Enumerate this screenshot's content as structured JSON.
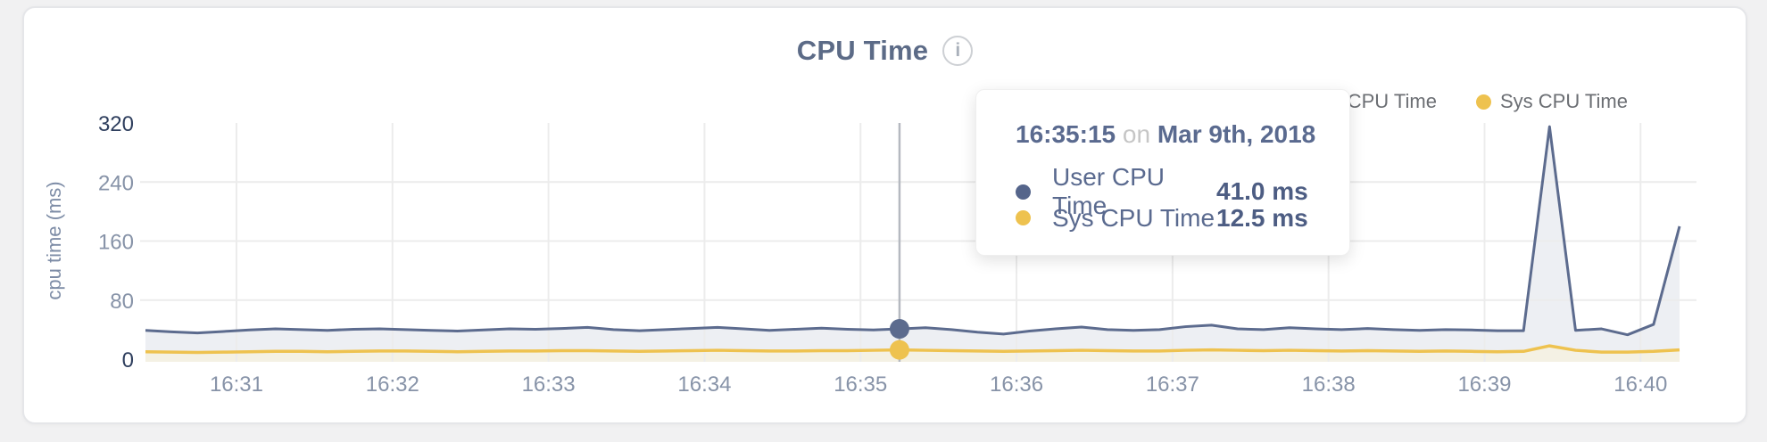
{
  "header": {
    "title": "CPU Time",
    "info_icon_glyph": "i"
  },
  "legend": {
    "items": [
      {
        "label": "User CPU Time",
        "color": "#5c6b8e"
      },
      {
        "label": "Sys CPU Time",
        "color": "#eec24f"
      }
    ]
  },
  "tooltip": {
    "time": "16:35:15",
    "connector": "on",
    "date": "Mar 9th, 2018",
    "rows": [
      {
        "label": "User CPU Time",
        "value": "41.0 ms",
        "color": "#55658b"
      },
      {
        "label": "Sys CPU Time",
        "value": "12.5 ms",
        "color": "#eec24f"
      }
    ]
  },
  "chart_data": {
    "type": "area",
    "title": "CPU Time",
    "xlabel": "",
    "ylabel": "cpu time (ms)",
    "ylim": [
      0,
      320
    ],
    "y_ticks": [
      0,
      80,
      160,
      240,
      320
    ],
    "x_ticks": [
      "16:31",
      "16:32",
      "16:33",
      "16:34",
      "16:35",
      "16:36",
      "16:37",
      "16:38",
      "16:39",
      "16:40"
    ],
    "x_range": [
      "16:30:25",
      "16:40:15"
    ],
    "hover_time": "16:35:15",
    "grid": true,
    "legend_position": "top-right",
    "x": [
      "16:30:25",
      "16:30:35",
      "16:30:45",
      "16:30:55",
      "16:31:05",
      "16:31:15",
      "16:31:25",
      "16:31:35",
      "16:31:45",
      "16:31:55",
      "16:32:05",
      "16:32:15",
      "16:32:25",
      "16:32:35",
      "16:32:45",
      "16:32:55",
      "16:33:05",
      "16:33:15",
      "16:33:25",
      "16:33:35",
      "16:33:45",
      "16:33:55",
      "16:34:05",
      "16:34:15",
      "16:34:25",
      "16:34:35",
      "16:34:45",
      "16:34:55",
      "16:35:05",
      "16:35:15",
      "16:35:25",
      "16:35:35",
      "16:35:45",
      "16:35:55",
      "16:36:05",
      "16:36:15",
      "16:36:25",
      "16:36:35",
      "16:36:45",
      "16:36:55",
      "16:37:05",
      "16:37:15",
      "16:37:25",
      "16:37:35",
      "16:37:45",
      "16:37:55",
      "16:38:05",
      "16:38:15",
      "16:38:25",
      "16:38:35",
      "16:38:45",
      "16:38:55",
      "16:39:05",
      "16:39:15",
      "16:39:25",
      "16:39:35",
      "16:39:45",
      "16:39:55",
      "16:40:05",
      "16:40:15"
    ],
    "series": [
      {
        "name": "User CPU Time",
        "color": "#5c6b8e",
        "fill": "#edeff3",
        "unit": "ms",
        "values": [
          39,
          37,
          35.5,
          37.5,
          39.5,
          41,
          40,
          39,
          40.5,
          41,
          40,
          39,
          38,
          39.5,
          41,
          40.5,
          41.5,
          43,
          40,
          38.5,
          40,
          41.5,
          43,
          41,
          39,
          40.5,
          42,
          40.5,
          39.5,
          41,
          42.5,
          40,
          36.5,
          34,
          38,
          41,
          43.5,
          40,
          39,
          40,
          44,
          46,
          41,
          40,
          42.5,
          41,
          40,
          41.5,
          40,
          39,
          40,
          39.5,
          38.5,
          38.5,
          315,
          39,
          41,
          33,
          47,
          180
        ]
      },
      {
        "name": "Sys CPU Time",
        "color": "#eec24f",
        "fill": "#f4f1e4",
        "unit": "ms",
        "values": [
          10,
          9.5,
          9,
          9.5,
          10,
          10.5,
          10.5,
          10,
          10.5,
          11,
          11,
          10.5,
          10,
          10.5,
          11,
          11,
          11.5,
          11.5,
          11,
          10.5,
          11,
          11.5,
          12,
          11.5,
          11,
          11,
          11.5,
          11.5,
          12,
          12.5,
          12,
          11.5,
          11,
          10.5,
          11,
          11.5,
          12,
          11.5,
          11,
          11,
          12,
          12.5,
          12,
          11.5,
          12,
          11.5,
          11,
          11.5,
          11,
          10.5,
          11,
          10.5,
          10,
          10.5,
          18,
          12,
          9.5,
          9.5,
          10.5,
          12.5
        ]
      }
    ]
  },
  "colors": {
    "page_background": "#f1f1f2",
    "card_background": "#ffffff",
    "grid": "#ececec",
    "crosshair": "#b5b9c0",
    "axis_label": "#8793a8",
    "axis_label_strong": "#2f3f5e",
    "title_text": "#5c6b87"
  }
}
